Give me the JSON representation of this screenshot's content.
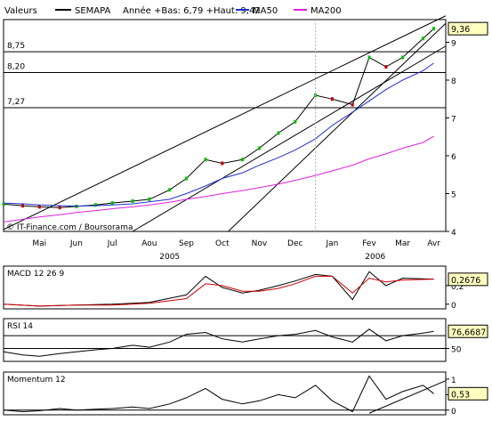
{
  "header": {
    "label": "Valeurs",
    "ticker": "SEMAPA",
    "range": "Année +Bas: 6,79 +Haut: 9,42",
    "ma50": "MA50",
    "ma200": "MA200"
  },
  "credit": "© IT-Finance.com / Boursorama",
  "colors": {
    "price_up": "#00c000",
    "price_down": "#c00000",
    "ma50": "#2030d0",
    "ma200": "#e020e0",
    "trend": "#000000",
    "macd": "#000000",
    "signal": "#d00000",
    "last_badge_bg": "#ffffc0",
    "grid": "#b0b0b0"
  },
  "chart_data": [
    {
      "type": "line",
      "panel": "price",
      "x": [
        "2005-04-15",
        "2005-05-01",
        "2005-05-15",
        "2005-06-01",
        "2005-06-15",
        "2005-07-01",
        "2005-07-15",
        "2005-08-01",
        "2005-08-15",
        "2005-09-01",
        "2005-09-15",
        "2005-10-01",
        "2005-10-15",
        "2005-11-01",
        "2005-11-15",
        "2005-12-01",
        "2005-12-15",
        "2006-01-01",
        "2006-01-15",
        "2006-02-01",
        "2006-02-15",
        "2006-03-01",
        "2006-03-15",
        "2006-04-01",
        "2006-04-10"
      ],
      "series": [
        {
          "name": "SEMAPA",
          "values": [
            4.72,
            4.68,
            4.65,
            4.63,
            4.66,
            4.7,
            4.75,
            4.8,
            4.85,
            5.1,
            5.4,
            5.9,
            5.8,
            5.9,
            6.2,
            6.6,
            6.9,
            7.6,
            7.5,
            7.35,
            8.6,
            8.35,
            8.6,
            9.1,
            9.36
          ]
        },
        {
          "name": "MA50",
          "values": [
            4.75,
            4.73,
            4.7,
            4.68,
            4.67,
            4.68,
            4.7,
            4.73,
            4.78,
            4.85,
            5.0,
            5.2,
            5.4,
            5.55,
            5.75,
            5.95,
            6.15,
            6.45,
            6.8,
            7.15,
            7.45,
            7.75,
            8.0,
            8.25,
            8.45
          ]
        },
        {
          "name": "MA200",
          "values": [
            4.25,
            4.32,
            4.38,
            4.44,
            4.5,
            4.55,
            4.6,
            4.65,
            4.7,
            4.77,
            4.85,
            4.92,
            5.0,
            5.08,
            5.16,
            5.25,
            5.35,
            5.48,
            5.6,
            5.75,
            5.92,
            6.05,
            6.2,
            6.35,
            6.52
          ]
        }
      ],
      "horizontal_lines": [
        8.75,
        8.2,
        7.27
      ],
      "trend_lines": [
        {
          "from": [
            "2005-04-15",
            4.05
          ],
          "to": [
            "2006-04-20",
            9.7
          ]
        },
        {
          "from": [
            "2005-08-01",
            4.0
          ],
          "to": [
            "2006-04-20",
            8.9
          ]
        },
        {
          "from": [
            "2005-10-20",
            4.0
          ],
          "to": [
            "2006-04-20",
            9.5
          ]
        }
      ],
      "left_labels": [
        "8,75",
        "8,20",
        "7,27"
      ],
      "y_ticks": [
        "4",
        "5",
        "6",
        "7",
        "8",
        "9"
      ],
      "ylim": [
        4,
        9.6
      ],
      "last_value": "9,36",
      "x_month_labels": [
        "Mai",
        "Jun",
        "Jul",
        "Aou",
        "Sep",
        "Oct",
        "Nov",
        "Dec",
        "Jan",
        "Fev",
        "Mar",
        "Avr"
      ],
      "x_year_labels": [
        "2005",
        "2006"
      ]
    },
    {
      "type": "line",
      "panel": "macd",
      "title": "MACD 12 26 9",
      "x": [
        "2005-04-15",
        "2005-05-15",
        "2005-06-15",
        "2005-07-15",
        "2005-08-15",
        "2005-09-15",
        "2005-10-01",
        "2005-10-15",
        "2005-11-01",
        "2005-11-15",
        "2005-12-01",
        "2005-12-15",
        "2006-01-01",
        "2006-01-15",
        "2006-02-01",
        "2006-02-15",
        "2006-03-01",
        "2006-03-15",
        "2006-04-10"
      ],
      "series": [
        {
          "name": "MACD",
          "values": [
            0.0,
            -0.02,
            -0.01,
            0.0,
            0.02,
            0.1,
            0.3,
            0.18,
            0.12,
            0.15,
            0.2,
            0.25,
            0.32,
            0.3,
            0.05,
            0.35,
            0.2,
            0.28,
            0.27
          ]
        },
        {
          "name": "Signal",
          "values": [
            0.0,
            -0.02,
            -0.01,
            -0.01,
            0.01,
            0.06,
            0.22,
            0.2,
            0.14,
            0.14,
            0.17,
            0.22,
            0.3,
            0.3,
            0.12,
            0.28,
            0.24,
            0.26,
            0.27
          ]
        }
      ],
      "y_ticks": [
        "0",
        "0,2"
      ],
      "ylim": [
        -0.05,
        0.4
      ],
      "last_value": "0,2676"
    },
    {
      "type": "line",
      "panel": "rsi",
      "title": "RSI 14",
      "x": [
        "2005-04-15",
        "2005-05-01",
        "2005-05-15",
        "2005-06-01",
        "2005-06-15",
        "2005-07-01",
        "2005-07-15",
        "2005-08-01",
        "2005-08-15",
        "2005-09-01",
        "2005-09-15",
        "2005-10-01",
        "2005-10-15",
        "2005-11-01",
        "2005-11-15",
        "2005-12-01",
        "2005-12-15",
        "2006-01-01",
        "2006-01-15",
        "2006-02-01",
        "2006-02-15",
        "2006-03-01",
        "2006-03-15",
        "2006-04-01",
        "2006-04-10"
      ],
      "series": [
        {
          "name": "RSI",
          "values": [
            45,
            40,
            38,
            42,
            45,
            48,
            50,
            55,
            52,
            60,
            72,
            75,
            65,
            60,
            65,
            70,
            72,
            78,
            68,
            60,
            80,
            62,
            70,
            74,
            76.67
          ]
        }
      ],
      "y_ticks": [
        "50"
      ],
      "horizontal_lines": [
        70,
        50
      ],
      "ylim": [
        30,
        95
      ],
      "last_value": "76,6687"
    },
    {
      "type": "line",
      "panel": "momentum",
      "title": "Momentum 12",
      "x": [
        "2005-04-15",
        "2005-05-01",
        "2005-05-15",
        "2005-06-01",
        "2005-06-15",
        "2005-07-01",
        "2005-07-15",
        "2005-08-01",
        "2005-08-15",
        "2005-09-01",
        "2005-09-15",
        "2005-10-01",
        "2005-10-15",
        "2005-11-01",
        "2005-11-15",
        "2005-12-01",
        "2005-12-15",
        "2006-01-01",
        "2006-01-15",
        "2006-02-01",
        "2006-02-15",
        "2006-03-01",
        "2006-03-15",
        "2006-04-01",
        "2006-04-10"
      ],
      "series": [
        {
          "name": "Momentum",
          "values": [
            0.0,
            -0.05,
            -0.02,
            0.05,
            0.0,
            0.03,
            0.05,
            0.1,
            0.05,
            0.2,
            0.4,
            0.7,
            0.35,
            0.2,
            0.3,
            0.5,
            0.4,
            0.8,
            0.3,
            -0.05,
            1.1,
            0.35,
            0.6,
            0.8,
            0.53
          ]
        }
      ],
      "trend_lines": [
        {
          "from": [
            "2006-02-15",
            -0.1
          ],
          "to": [
            "2006-04-20",
            0.95
          ]
        }
      ],
      "y_ticks": [
        "0",
        "0,5",
        "1"
      ],
      "horizontal_lines": [
        0
      ],
      "ylim": [
        -0.15,
        1.2
      ],
      "last_value": "0,53"
    }
  ]
}
